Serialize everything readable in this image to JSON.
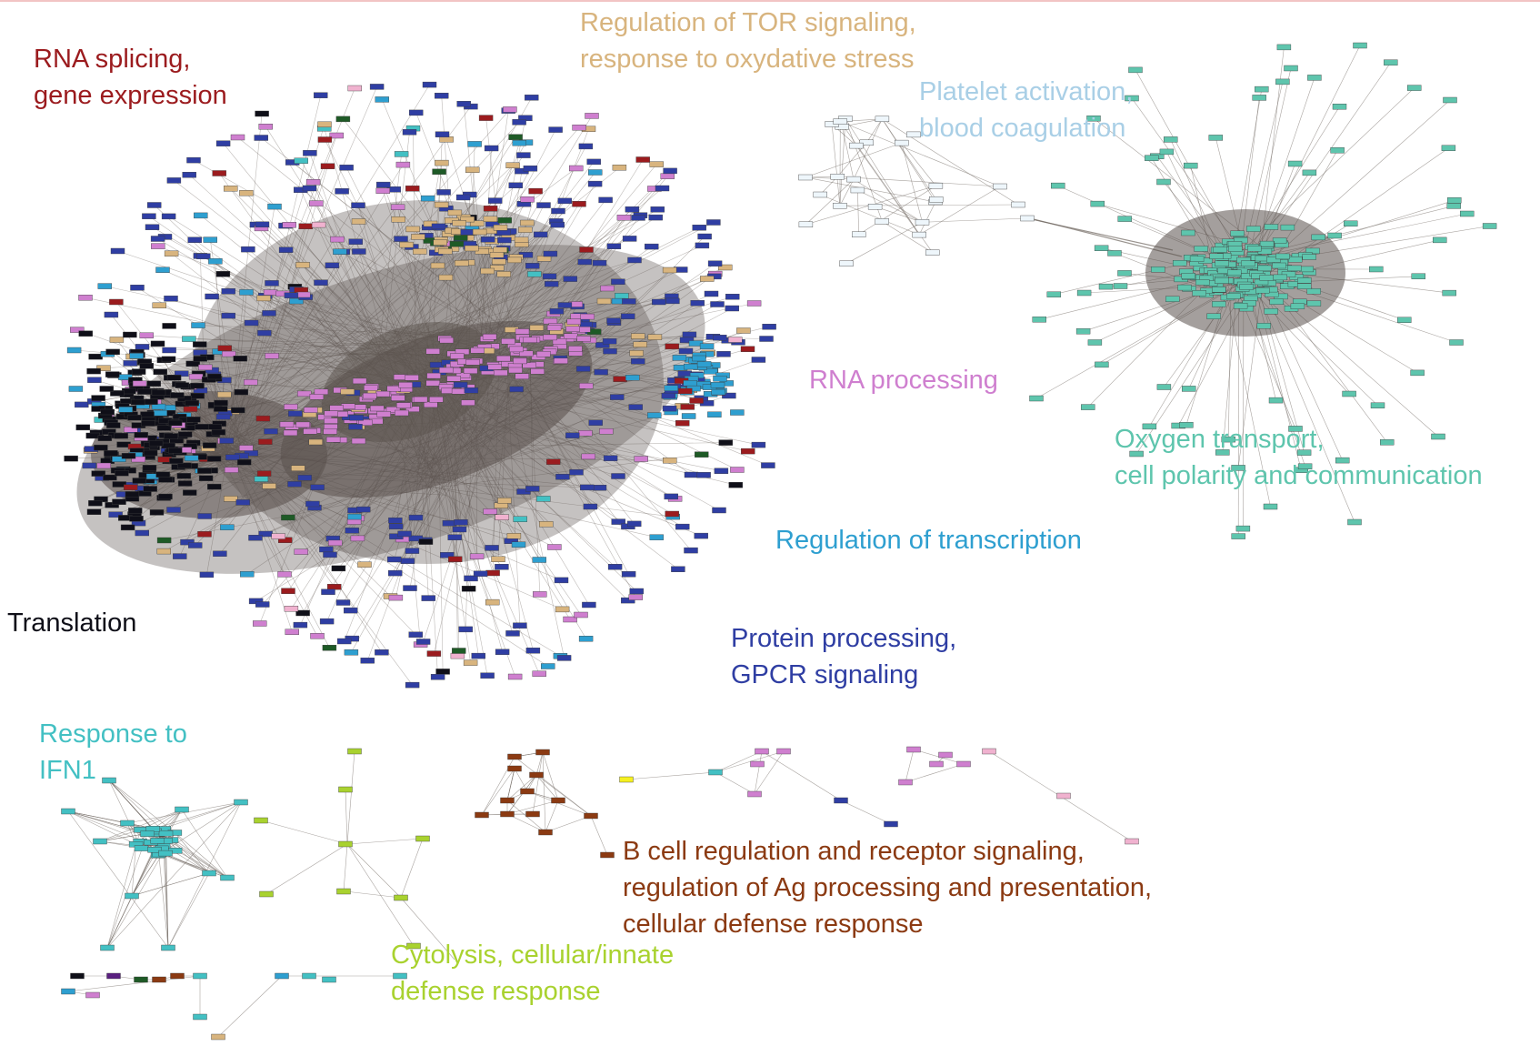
{
  "colors": {
    "background": "#ffffff",
    "edge": "#6f6760",
    "rna_splicing": "#9b1b1e",
    "tor_signaling": "#d8b47e",
    "platelet": "#a9cfe6",
    "oxygen": "#5ec5ad",
    "rna_processing": "#cf7fcf",
    "transcription": "#2e9fd0",
    "protein_processing": "#2f3ea3",
    "translation": "#0f0f18",
    "ifn1": "#43c0c3",
    "b_cell": "#8b3a12",
    "cytolysis": "#a9d22f",
    "dark_green": "#1e5a26",
    "purple": "#5a2080",
    "light_pink": "#f0b2cf"
  },
  "clusters": [
    {
      "id": "rna-splicing",
      "lines": [
        "RNA splicing,",
        "gene expression"
      ],
      "color": "#9b1b1e"
    },
    {
      "id": "tor-signaling",
      "lines": [
        "Regulation of TOR signaling,",
        "response to oxydative stress"
      ],
      "color": "#d8b47e"
    },
    {
      "id": "platelet-activation",
      "lines": [
        "Platelet activation,",
        "blood coagulation"
      ],
      "color": "#a9cfe6"
    },
    {
      "id": "rna-processing",
      "lines": [
        "RNA processing"
      ],
      "color": "#cf7fcf"
    },
    {
      "id": "oxygen-transport",
      "lines": [
        "Oxygen transport,",
        "cell polarity and communication"
      ],
      "color": "#5ec5ad"
    },
    {
      "id": "regulation-of-transcription",
      "lines": [
        "Regulation of transcription"
      ],
      "color": "#2e9fd0"
    },
    {
      "id": "translation",
      "lines": [
        "Translation"
      ],
      "color": "#0f0f18"
    },
    {
      "id": "protein-processing",
      "lines": [
        "Protein processing,",
        "GPCR signaling"
      ],
      "color": "#2f3ea3"
    },
    {
      "id": "response-to-ifn1",
      "lines": [
        "Response to",
        "IFN1"
      ],
      "color": "#43c0c3"
    },
    {
      "id": "b-cell-regulation",
      "lines": [
        "B cell regulation and receptor signaling,",
        "regulation of Ag processing and presentation,",
        "cellular defense response"
      ],
      "color": "#8b3a12"
    },
    {
      "id": "cytolysis",
      "lines": [
        "Cytolysis, cellular/innate",
        "defense response"
      ],
      "color": "#a9d22f"
    }
  ]
}
